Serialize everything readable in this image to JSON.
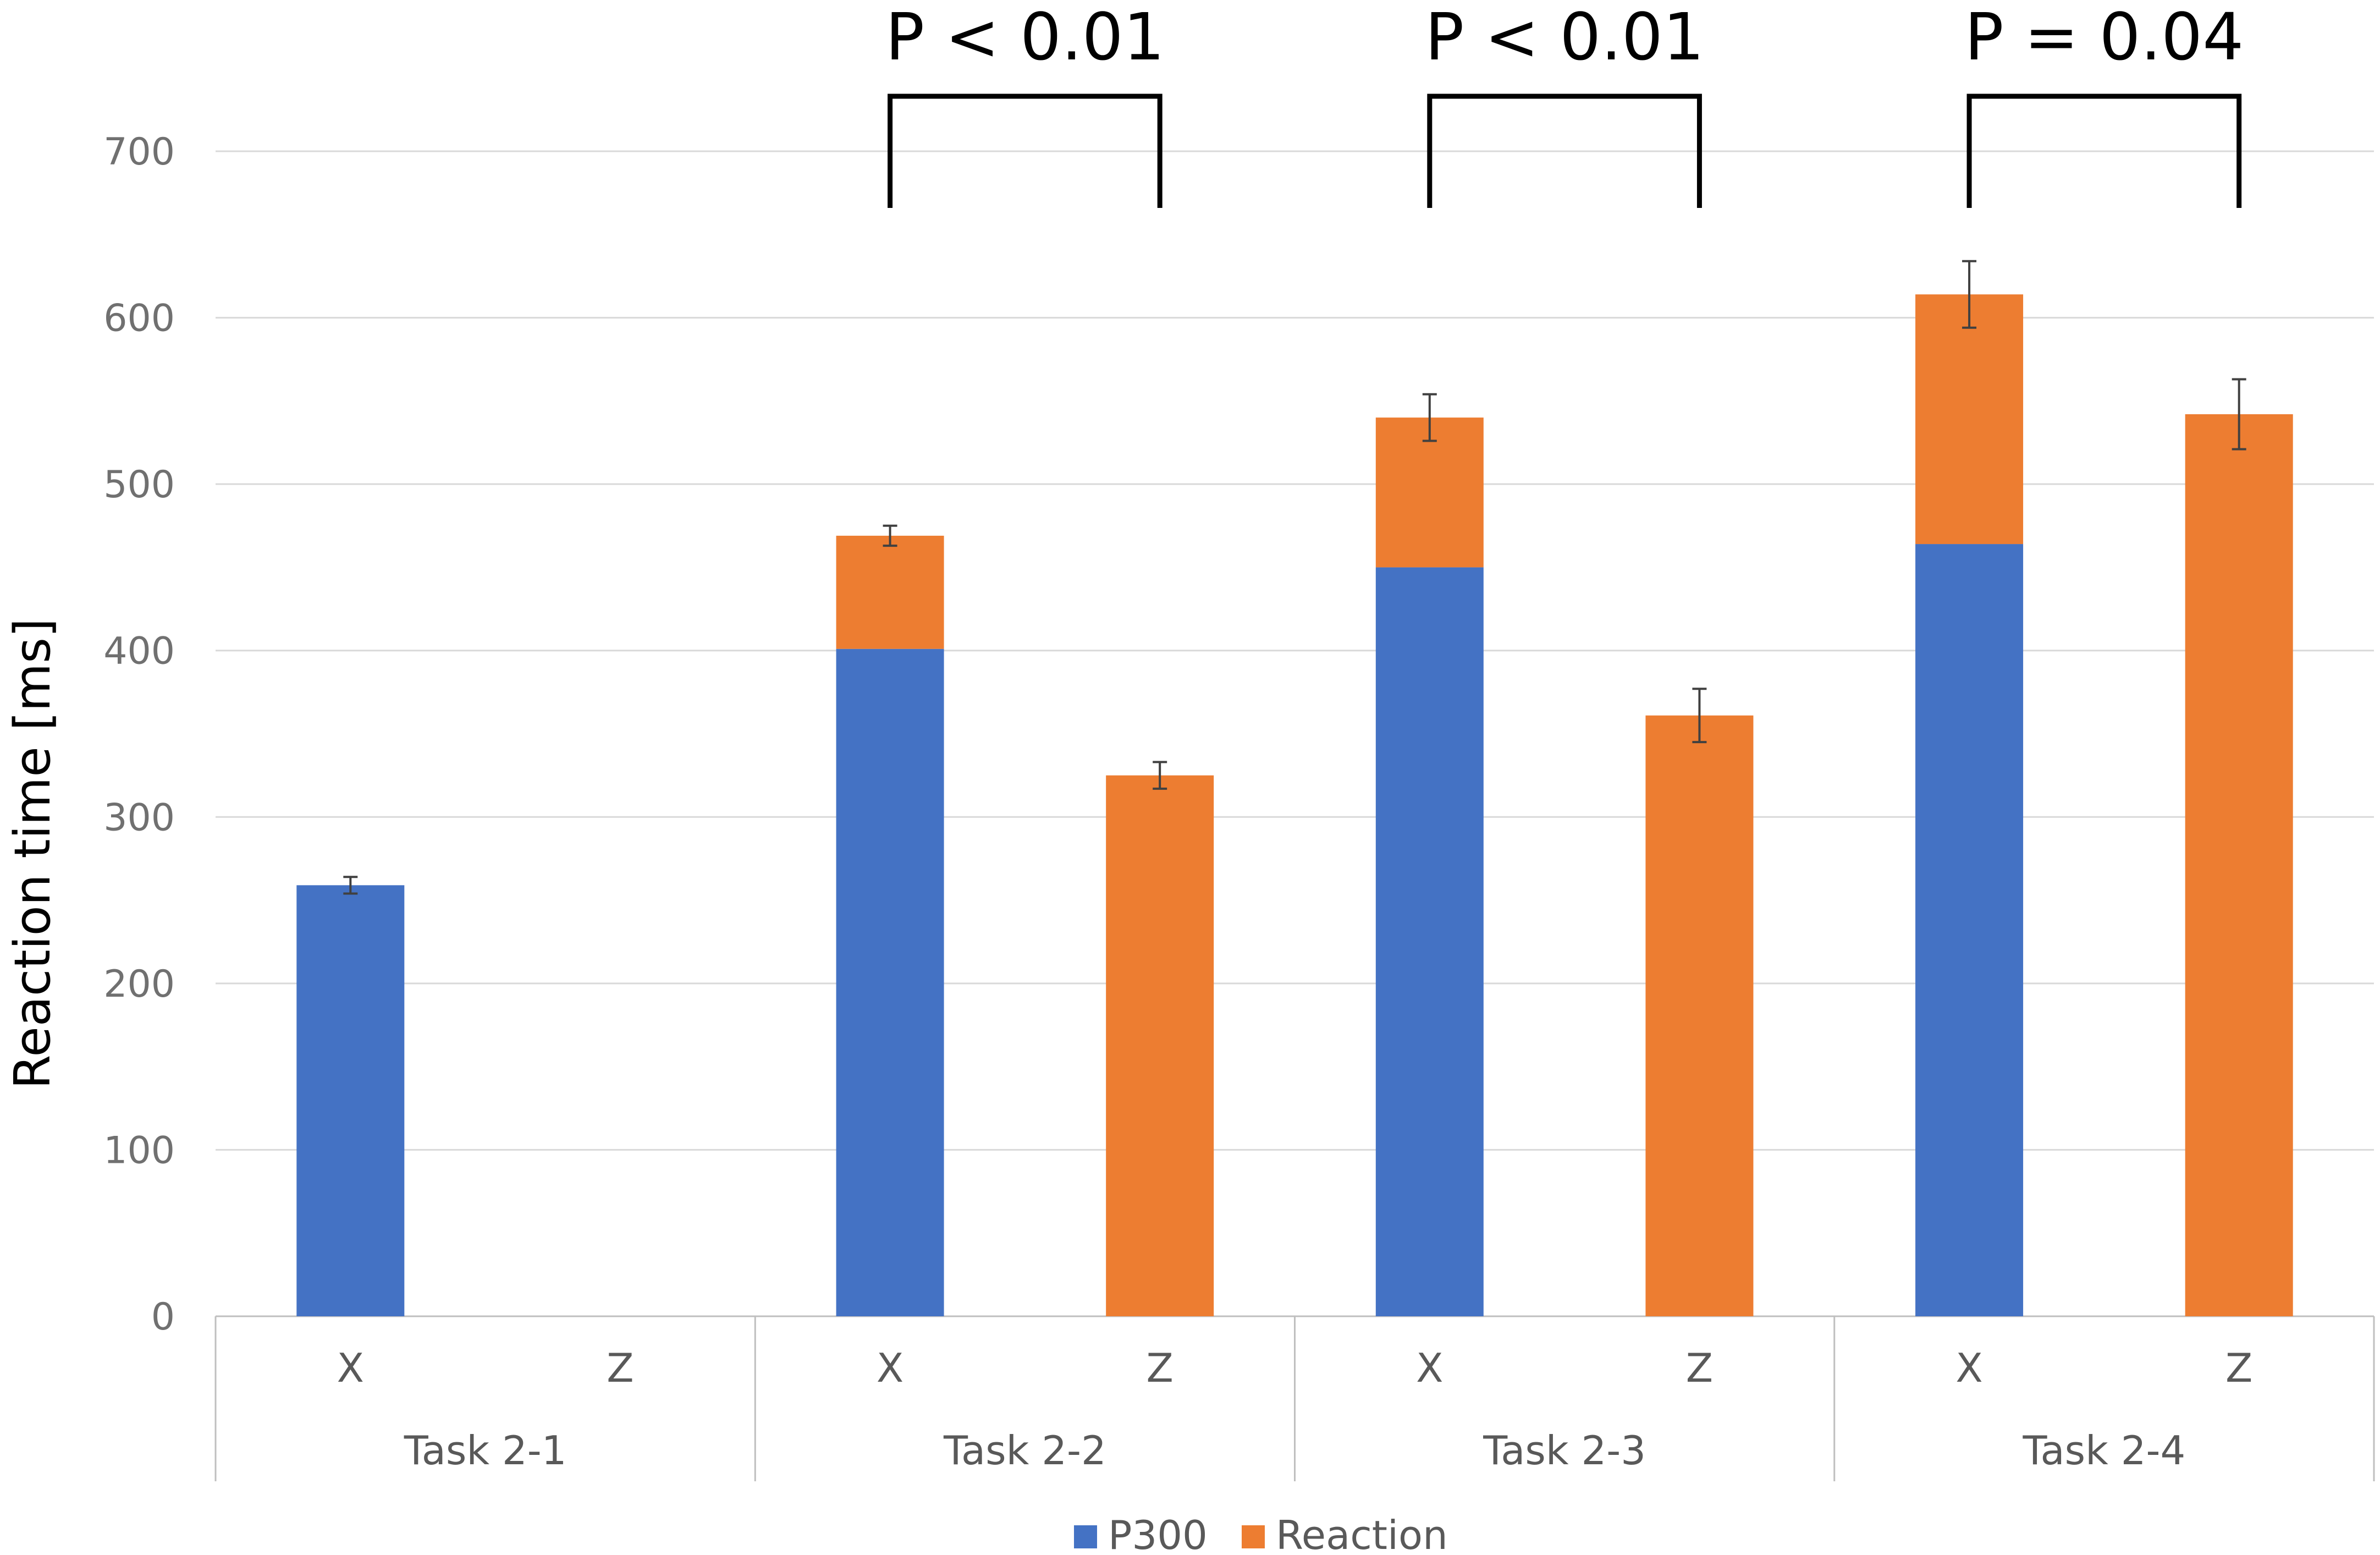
{
  "chart_data": {
    "type": "bar",
    "stacked": true,
    "title": "",
    "xlabel": "",
    "ylabel": "Reaction time [ms]",
    "ylim": [
      0,
      700
    ],
    "yticks": [
      0,
      100,
      200,
      300,
      400,
      500,
      600,
      700
    ],
    "grid": true,
    "legend_position": "bottom",
    "groups": [
      "Task 2-1",
      "Task 2-2",
      "Task 2-3",
      "Task 2-4"
    ],
    "categories": [
      "X",
      "Z",
      "X",
      "Z",
      "X",
      "Z",
      "X",
      "Z"
    ],
    "category_group": [
      0,
      0,
      1,
      1,
      2,
      2,
      3,
      3
    ],
    "series": [
      {
        "name": "P300",
        "color": "#4472C4",
        "values": [
          259,
          0,
          401,
          0,
          450,
          0,
          464,
          0
        ]
      },
      {
        "name": "Reaction",
        "color": "#ED7D31",
        "values": [
          0,
          0,
          68,
          325,
          90,
          361,
          150,
          542
        ]
      }
    ],
    "error_bars": [
      {
        "bar": 0,
        "top": 259,
        "err": 5
      },
      {
        "bar": 2,
        "top": 469,
        "err": 6
      },
      {
        "bar": 3,
        "top": 325,
        "err": 8
      },
      {
        "bar": 4,
        "top": 540,
        "err": 14
      },
      {
        "bar": 5,
        "top": 361,
        "err": 16
      },
      {
        "bar": 6,
        "top": 614,
        "err": 20
      },
      {
        "bar": 7,
        "top": 542,
        "err": 21
      }
    ],
    "annotations": [
      {
        "label": "P < 0.01",
        "from_bar": 2,
        "to_bar": 3
      },
      {
        "label": "P < 0.01",
        "from_bar": 4,
        "to_bar": 5
      },
      {
        "label": "P = 0.04",
        "from_bar": 6,
        "to_bar": 7
      }
    ]
  }
}
